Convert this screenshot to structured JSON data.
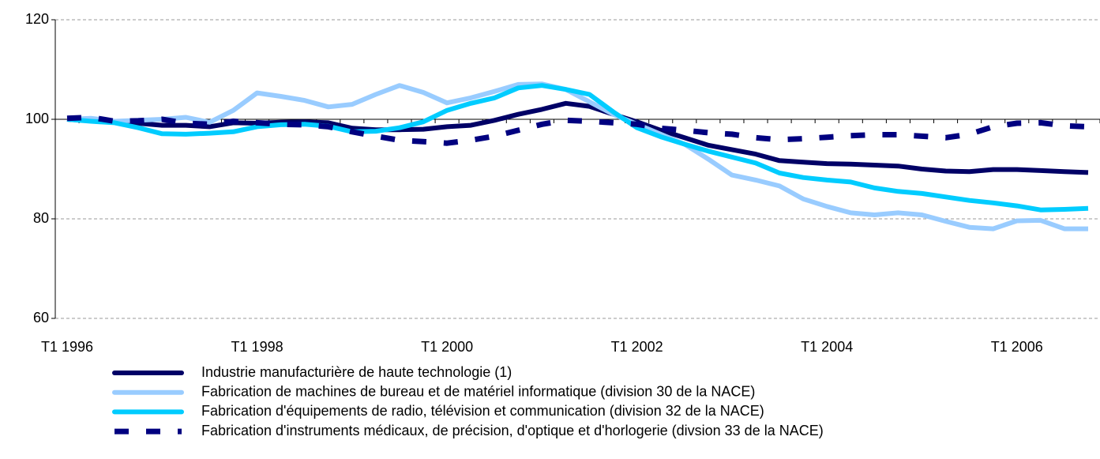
{
  "chart_data": {
    "type": "line",
    "categories": [
      "T1 1996",
      null,
      null,
      null,
      null,
      null,
      null,
      null,
      "T1 1998",
      null,
      null,
      null,
      null,
      null,
      null,
      null,
      "T1 2000",
      null,
      null,
      null,
      null,
      null,
      null,
      null,
      "T1 2002",
      null,
      null,
      null,
      null,
      null,
      null,
      null,
      "T1 2004",
      null,
      null,
      null,
      null,
      null,
      null,
      null,
      "T1 2006",
      null,
      null,
      null
    ],
    "series": [
      {
        "name": "Industrie manufacturière de haute technologie (1)",
        "color": "#000066",
        "dash": false,
        "values": [
          100,
          99.7,
          99.5,
          99.2,
          98.8,
          98.8,
          98.5,
          99.3,
          99.2,
          99.4,
          99.5,
          99.3,
          98.2,
          97.9,
          97.9,
          98.0,
          98.5,
          98.8,
          99.8,
          101.0,
          102.0,
          103.2,
          102.6,
          101.0,
          99.5,
          97.8,
          96.3,
          94.8,
          93.9,
          93.0,
          91.7,
          91.4,
          91.1,
          91.0,
          90.8,
          90.6,
          90.0,
          89.6,
          89.5,
          89.9,
          89.9,
          89.7,
          89.5,
          89.3
        ]
      },
      {
        "name": "Fabrication de machines de bureau et de matériel informatique (division 30 de la NACE)",
        "color": "#99ccff",
        "dash": false,
        "values": [
          100,
          100.2,
          99.6,
          99.8,
          100.0,
          100.4,
          99.4,
          101.8,
          105.3,
          104.6,
          103.8,
          102.5,
          103.0,
          105.0,
          106.8,
          105.4,
          103.3,
          104.3,
          105.6,
          107.0,
          107.1,
          106.0,
          103.5,
          101.0,
          99.0,
          97.0,
          95.0,
          92.0,
          88.8,
          87.8,
          86.6,
          84.0,
          82.5,
          81.2,
          80.8,
          81.2,
          80.8,
          79.5,
          78.3,
          78.0,
          79.6,
          79.7,
          78.0,
          78.0
        ]
      },
      {
        "name": "Fabrication d'équipements de radio, télévision et communication (division 32 de la NACE)",
        "color": "#00ccff",
        "dash": false,
        "values": [
          100,
          99.6,
          99.3,
          98.3,
          97.1,
          97.0,
          97.2,
          97.5,
          98.5,
          98.9,
          99.0,
          98.6,
          97.5,
          97.6,
          98.3,
          99.5,
          101.8,
          103.2,
          104.3,
          106.3,
          106.8,
          106.0,
          105.0,
          101.5,
          98.3,
          96.5,
          95.0,
          93.6,
          92.4,
          91.2,
          89.2,
          88.3,
          87.8,
          87.4,
          86.2,
          85.5,
          85.1,
          84.4,
          83.7,
          83.2,
          82.6,
          81.8,
          81.9,
          82.1
        ]
      },
      {
        "name": "Fabrication d'instruments médicaux, de précision, d'optique et d'horlogerie (divsion 33 de la NACE)",
        "color": "#000080",
        "dash": true,
        "values": [
          100.2,
          100.4,
          99.6,
          99.7,
          100.0,
          99.2,
          99.0,
          99.6,
          99.3,
          99.0,
          98.9,
          98.5,
          97.5,
          96.6,
          95.8,
          95.5,
          95.2,
          95.8,
          96.6,
          97.8,
          99.0,
          99.8,
          99.6,
          99.3,
          99.0,
          98.2,
          97.8,
          97.3,
          97.0,
          96.3,
          95.9,
          96.1,
          96.4,
          96.7,
          96.9,
          96.9,
          96.6,
          96.3,
          97.0,
          98.5,
          99.2,
          99.3,
          98.7,
          98.5
        ]
      }
    ],
    "ylim": [
      60,
      120
    ],
    "yticks": [
      60,
      80,
      100,
      120
    ],
    "grid": true,
    "xaxis_cross": 100,
    "legend": "bottom"
  }
}
